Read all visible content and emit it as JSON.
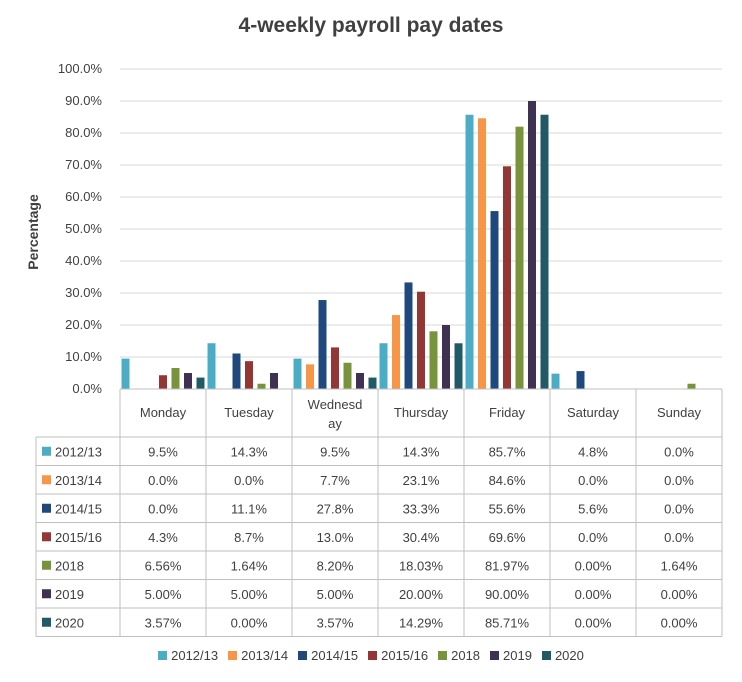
{
  "chart_data": {
    "type": "bar",
    "title": "4-weekly payroll pay dates",
    "ylabel": "Percentage",
    "xlabel": "",
    "ylim": [
      0,
      100
    ],
    "yticks": [
      "0.0%",
      "10.0%",
      "20.0%",
      "30.0%",
      "40.0%",
      "50.0%",
      "60.0%",
      "70.0%",
      "80.0%",
      "90.0%",
      "100.0%"
    ],
    "categories": [
      "Monday",
      "Tuesday",
      "Wednesday",
      "Thursday",
      "Friday",
      "Saturday",
      "Sunday"
    ],
    "category_lines": [
      [
        "Monday"
      ],
      [
        "Tuesday"
      ],
      [
        "Wednesd",
        "ay"
      ],
      [
        "Thursday"
      ],
      [
        "Friday"
      ],
      [
        "Saturday"
      ],
      [
        "Sunday"
      ]
    ],
    "series": [
      {
        "name": "2012/13",
        "color": "#4BACC6",
        "values": [
          9.5,
          14.3,
          9.5,
          14.3,
          85.7,
          4.8,
          0.0
        ],
        "labels": [
          "9.5%",
          "14.3%",
          "9.5%",
          "14.3%",
          "85.7%",
          "4.8%",
          "0.0%"
        ]
      },
      {
        "name": "2013/14",
        "color": "#F79646",
        "values": [
          0.0,
          0.0,
          7.7,
          23.1,
          84.6,
          0.0,
          0.0
        ],
        "labels": [
          "0.0%",
          "0.0%",
          "7.7%",
          "23.1%",
          "84.6%",
          "0.0%",
          "0.0%"
        ]
      },
      {
        "name": "2014/15",
        "color": "#1F497D",
        "values": [
          0.0,
          11.1,
          27.8,
          33.3,
          55.6,
          5.6,
          0.0
        ],
        "labels": [
          "0.0%",
          "11.1%",
          "27.8%",
          "33.3%",
          "55.6%",
          "5.6%",
          "0.0%"
        ]
      },
      {
        "name": "2015/16",
        "color": "#943634",
        "values": [
          4.3,
          8.7,
          13.0,
          30.4,
          69.6,
          0.0,
          0.0
        ],
        "labels": [
          "4.3%",
          "8.7%",
          "13.0%",
          "30.4%",
          "69.6%",
          "0.0%",
          "0.0%"
        ]
      },
      {
        "name": "2018",
        "color": "#77933C",
        "values": [
          6.56,
          1.64,
          8.2,
          18.03,
          81.97,
          0.0,
          1.64
        ],
        "labels": [
          "6.56%",
          "1.64%",
          "8.20%",
          "18.03%",
          "81.97%",
          "0.00%",
          "1.64%"
        ]
      },
      {
        "name": "2019",
        "color": "#3F3151",
        "values": [
          5.0,
          5.0,
          5.0,
          20.0,
          90.0,
          0.0,
          0.0
        ],
        "labels": [
          "5.00%",
          "5.00%",
          "5.00%",
          "20.00%",
          "90.00%",
          "0.00%",
          "0.00%"
        ]
      },
      {
        "name": "2020",
        "color": "#215967",
        "values": [
          3.57,
          0.0,
          3.57,
          14.29,
          85.71,
          0.0,
          0.0
        ],
        "labels": [
          "3.57%",
          "0.00%",
          "3.57%",
          "14.29%",
          "85.71%",
          "0.00%",
          "0.00%"
        ]
      }
    ],
    "grid": true,
    "legend_position": "bottom",
    "data_table": true
  }
}
